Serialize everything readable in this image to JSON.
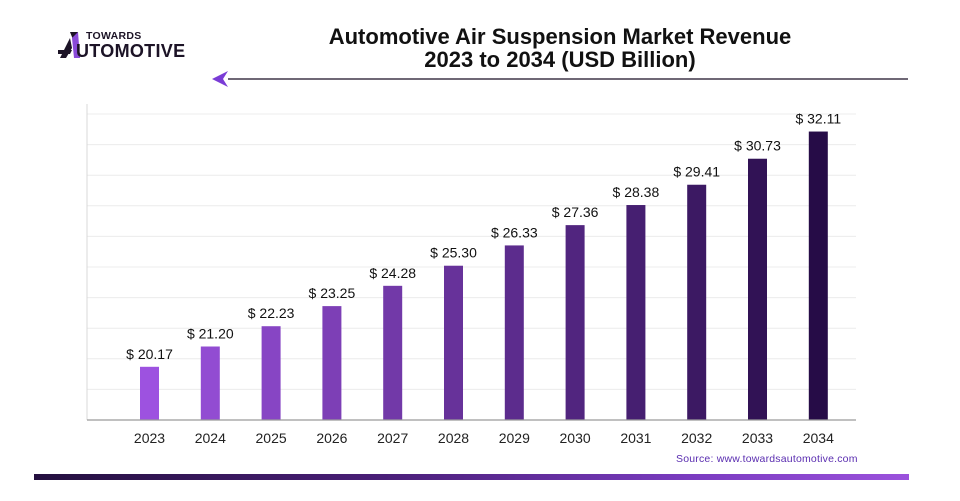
{
  "brand": {
    "logo_top": "TOWARDS",
    "logo_bottom": "UTOMOTIVE",
    "logo_icon": "stylized-A-icon"
  },
  "header": {
    "title_line1": "Automotive Air Suspension Market Revenue",
    "title_line2": "2023 to 2034 (USD Billion)"
  },
  "footer": {
    "source": "Source: www.towardsautomotive.com"
  },
  "colors": {
    "bar_light": "#9d52e0",
    "bar_dark": "#260c47",
    "accent": "#7a3cc0"
  },
  "chart_data": {
    "type": "bar",
    "title": "Automotive Air Suspension Market Revenue 2023 to 2034 (USD Billion)",
    "xlabel": "",
    "ylabel": "",
    "categories": [
      "2023",
      "2024",
      "2025",
      "2026",
      "2027",
      "2028",
      "2029",
      "2030",
      "2031",
      "2032",
      "2033",
      "2034"
    ],
    "values": [
      20.17,
      21.2,
      22.23,
      23.25,
      24.28,
      25.3,
      26.33,
      27.36,
      28.38,
      29.41,
      30.73,
      32.11
    ],
    "value_labels": [
      "$ 20.17",
      "$ 21.20",
      "$ 22.23",
      "$ 23.25",
      "$ 24.28",
      "$ 25.30",
      "$ 26.33",
      "$ 27.36",
      "$ 28.38",
      "$ 29.41",
      "$ 30.73",
      "$ 32.11"
    ],
    "ylim": [
      17.47,
      33.0
    ],
    "grid": true,
    "y_tick_labels_visible": false,
    "legend": "none",
    "units": "USD Billion"
  }
}
